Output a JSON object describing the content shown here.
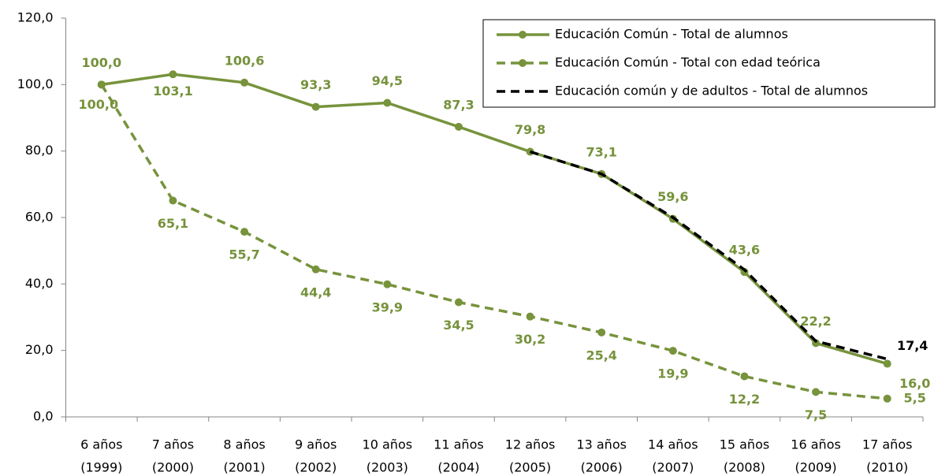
{
  "chart_data": {
    "type": "line",
    "categories": [
      [
        "6 años",
        "(1999)"
      ],
      [
        "7 años",
        "(2000)"
      ],
      [
        "8 años",
        "(2001)"
      ],
      [
        "9 años",
        "(2002)"
      ],
      [
        "10 años",
        "(2003)"
      ],
      [
        "11 años",
        "(2004)"
      ],
      [
        "12 años",
        "(2005)"
      ],
      [
        "13 años",
        "(2006)"
      ],
      [
        "14 años",
        "(2007)"
      ],
      [
        "15 años",
        "(2008)"
      ],
      [
        "16 años",
        "(2009)"
      ],
      [
        "17 años",
        "(2010)"
      ]
    ],
    "ylim": [
      0,
      120
    ],
    "yticks": [
      {
        "value": 0,
        "label": "0,0"
      },
      {
        "value": 20,
        "label": "20,0"
      },
      {
        "value": 40,
        "label": "40,0"
      },
      {
        "value": 60,
        "label": "60,0"
      },
      {
        "value": 80,
        "label": "80,0"
      },
      {
        "value": 100,
        "label": "100,0"
      },
      {
        "value": 120,
        "label": "120,0"
      }
    ],
    "grid": false,
    "legend": "top-right",
    "series": [
      {
        "name": "Educación Común - Total de alumnos",
        "color": "#77933c",
        "dash": "solid",
        "values": [
          100.0,
          103.1,
          100.6,
          93.3,
          94.5,
          87.3,
          79.8,
          73.1,
          59.6,
          43.6,
          22.2,
          16.0
        ],
        "value_labels": [
          "100,0",
          "103,1",
          "100,6",
          "93,3",
          "94,5",
          "87,3",
          "79,8",
          "73,1",
          "59,6",
          "43,6",
          "22,2",
          "16,0"
        ]
      },
      {
        "name": "Educación Común - Total con edad teórica",
        "color": "#77933c",
        "dash": "dashed",
        "values": [
          100.0,
          65.1,
          55.7,
          44.4,
          39.9,
          34.5,
          30.2,
          25.4,
          19.9,
          12.2,
          7.5,
          5.5
        ],
        "value_labels": [
          "100,0",
          "65,1",
          "55,7",
          "44,4",
          "39,9",
          "34,5",
          "30,2",
          "25,4",
          "19,9",
          "12,2",
          "7,5",
          "5,5"
        ]
      },
      {
        "name": "Educación común y de adultos - Total de alumnos",
        "color": "#000000",
        "dash": "dashed",
        "values": [
          null,
          null,
          null,
          null,
          null,
          null,
          79.8,
          73.1,
          60.0,
          44.3,
          22.8,
          17.4
        ],
        "value_labels": [
          null,
          null,
          null,
          null,
          null,
          null,
          null,
          null,
          null,
          null,
          null,
          "17,4"
        ]
      }
    ]
  }
}
